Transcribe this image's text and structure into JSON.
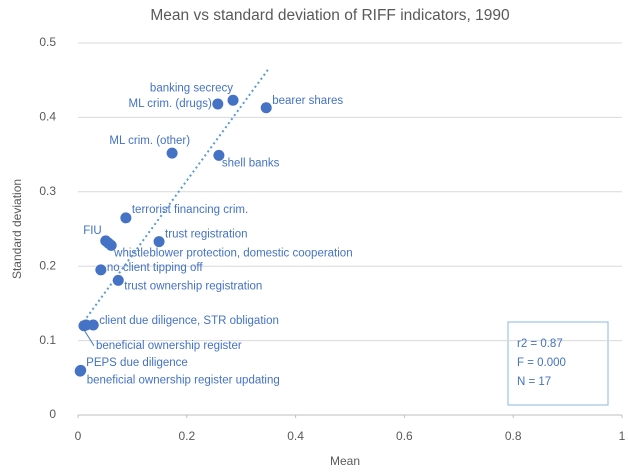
{
  "chart_data": {
    "type": "scatter",
    "title": "Mean vs standard deviation of RIFF indicators, 1990",
    "x_label": "Mean",
    "y_label": "Standard deviation",
    "xlim": [
      0,
      1
    ],
    "xticks": [
      0,
      0.2,
      0.4,
      0.6,
      0.8,
      1
    ],
    "ylim": [
      0,
      0.5
    ],
    "yticks": [
      0,
      0.1,
      0.2,
      0.3,
      0.4,
      0.5
    ],
    "grid": true,
    "color": "#4472c4",
    "x": [
      0.285,
      0.257,
      0.346,
      0.173,
      0.259,
      0.088,
      0.051,
      0.149,
      0.061,
      0.056,
      0.042,
      0.074,
      0.028,
      0.015,
      0.011,
      0.004,
      0.005
    ],
    "values": [
      0.423,
      0.418,
      0.413,
      0.352,
      0.349,
      0.265,
      0.234,
      0.233,
      0.228,
      0.231,
      0.195,
      0.181,
      0.121,
      0.121,
      0.12,
      0.059,
      0.06
    ],
    "labels": [
      "banking secrecy",
      "ML crim. (drugs)",
      "bearer shares",
      "ML crim. (other)",
      "shell banks",
      "terrorist financing crim.",
      "FIU",
      "trust registration",
      "whistleblower protection, domestic cooperation",
      null,
      "no client tipping off",
      "trust ownership registration",
      "client due diligence, STR obligation",
      null,
      "beneficial ownership register",
      "PEPS due diligence",
      "beneficial ownership register updating"
    ],
    "trendline": {
      "x": [
        0.005,
        0.35
      ],
      "y": [
        0.12,
        0.465
      ]
    },
    "stats": [
      "r2 = 0.87",
      "F = 0.000",
      "N = 17"
    ]
  }
}
